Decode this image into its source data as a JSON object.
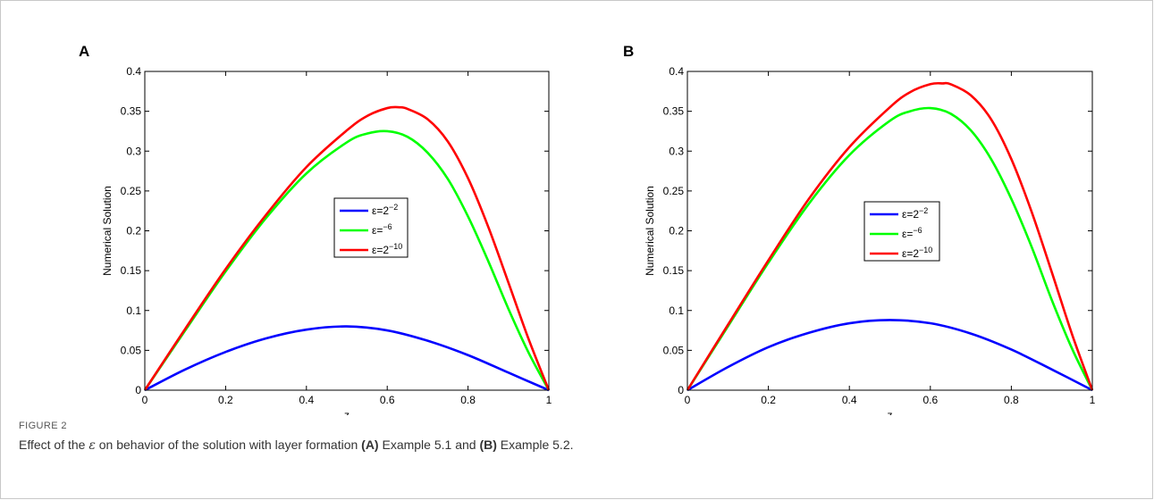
{
  "figure": {
    "label": "FIGURE 2",
    "caption_parts": [
      {
        "text": "Effect of the ",
        "style": "normal"
      },
      {
        "text": "ε",
        "style": "math"
      },
      {
        "text": " on behavior of the solution with layer formation ",
        "style": "normal"
      },
      {
        "text": "(A)",
        "style": "bold"
      },
      {
        "text": " Example 5.1 and ",
        "style": "normal"
      },
      {
        "text": "(B)",
        "style": "bold"
      },
      {
        "text": " Example 5.2.",
        "style": "normal"
      }
    ]
  },
  "colors": {
    "blue": "#0000ff",
    "green": "#00ff00",
    "red": "#ff0000"
  },
  "chart_data": [
    {
      "panel": "A",
      "type": "line",
      "xlabel": "z",
      "ylabel": "Numerical Solution",
      "xlim": [
        0,
        1
      ],
      "ylim": [
        0,
        0.4
      ],
      "xticks": [
        "0",
        "0.2",
        "0.4",
        "0.6",
        "0.8",
        "1"
      ],
      "yticks": [
        "0",
        "0.05",
        "0.1",
        "0.15",
        "0.2",
        "0.25",
        "0.3",
        "0.35",
        "0.4"
      ],
      "legend_position": "center-right",
      "series": [
        {
          "name": "ε=2^-2",
          "base": "ε=2",
          "exp": "−2",
          "color": "#0000ff",
          "x": [
            0,
            0.1,
            0.2,
            0.3,
            0.4,
            0.5,
            0.6,
            0.7,
            0.8,
            0.9,
            1
          ],
          "y": [
            0,
            0.026,
            0.048,
            0.065,
            0.076,
            0.08,
            0.075,
            0.062,
            0.044,
            0.022,
            0
          ]
        },
        {
          "name": "ε=^-6",
          "base": "ε=",
          "exp": "−6",
          "color": "#00ff00",
          "x": [
            0,
            0.1,
            0.2,
            0.3,
            0.4,
            0.5,
            0.55,
            0.6,
            0.65,
            0.7,
            0.75,
            0.8,
            0.85,
            0.9,
            0.95,
            1
          ],
          "y": [
            0,
            0.075,
            0.149,
            0.216,
            0.272,
            0.311,
            0.322,
            0.325,
            0.318,
            0.298,
            0.265,
            0.218,
            0.162,
            0.102,
            0.047,
            0
          ]
        },
        {
          "name": "ε=2^-10",
          "base": "ε=2",
          "exp": "−10",
          "color": "#ff0000",
          "x": [
            0,
            0.1,
            0.2,
            0.3,
            0.4,
            0.5,
            0.55,
            0.6,
            0.63,
            0.65,
            0.7,
            0.75,
            0.8,
            0.85,
            0.9,
            0.95,
            1
          ],
          "y": [
            0,
            0.077,
            0.152,
            0.22,
            0.28,
            0.326,
            0.344,
            0.354,
            0.355,
            0.353,
            0.34,
            0.312,
            0.266,
            0.205,
            0.135,
            0.064,
            0
          ]
        }
      ]
    },
    {
      "panel": "B",
      "type": "line",
      "xlabel": "z",
      "ylabel": "Numerical Solution",
      "xlim": [
        0,
        1
      ],
      "ylim": [
        0,
        0.4
      ],
      "xticks": [
        "0",
        "0.2",
        "0.4",
        "0.6",
        "0.8",
        "1"
      ],
      "yticks": [
        "0",
        "0.05",
        "0.1",
        "0.15",
        "0.2",
        "0.25",
        "0.3",
        "0.35",
        "0.4"
      ],
      "legend_position": "center-right",
      "series": [
        {
          "name": "ε=2^-2",
          "base": "ε=2",
          "exp": "−2",
          "color": "#0000ff",
          "x": [
            0,
            0.1,
            0.2,
            0.3,
            0.4,
            0.5,
            0.6,
            0.7,
            0.8,
            0.9,
            1
          ],
          "y": [
            0,
            0.029,
            0.054,
            0.072,
            0.084,
            0.088,
            0.084,
            0.071,
            0.051,
            0.026,
            0
          ]
        },
        {
          "name": "ε=^-6",
          "base": "ε=",
          "exp": "−6",
          "color": "#00ff00",
          "x": [
            0,
            0.1,
            0.2,
            0.3,
            0.4,
            0.5,
            0.55,
            0.6,
            0.65,
            0.7,
            0.75,
            0.8,
            0.85,
            0.9,
            0.95,
            1
          ],
          "y": [
            0,
            0.08,
            0.16,
            0.234,
            0.295,
            0.338,
            0.35,
            0.354,
            0.347,
            0.326,
            0.29,
            0.24,
            0.18,
            0.113,
            0.052,
            0
          ]
        },
        {
          "name": "ε=2^-10",
          "base": "ε=2",
          "exp": "−10",
          "color": "#ff0000",
          "x": [
            0,
            0.1,
            0.2,
            0.3,
            0.4,
            0.5,
            0.55,
            0.6,
            0.63,
            0.65,
            0.7,
            0.75,
            0.8,
            0.85,
            0.9,
            0.95,
            1
          ],
          "y": [
            0,
            0.082,
            0.163,
            0.24,
            0.305,
            0.355,
            0.374,
            0.384,
            0.385,
            0.384,
            0.37,
            0.34,
            0.29,
            0.224,
            0.148,
            0.07,
            0
          ]
        }
      ]
    }
  ]
}
